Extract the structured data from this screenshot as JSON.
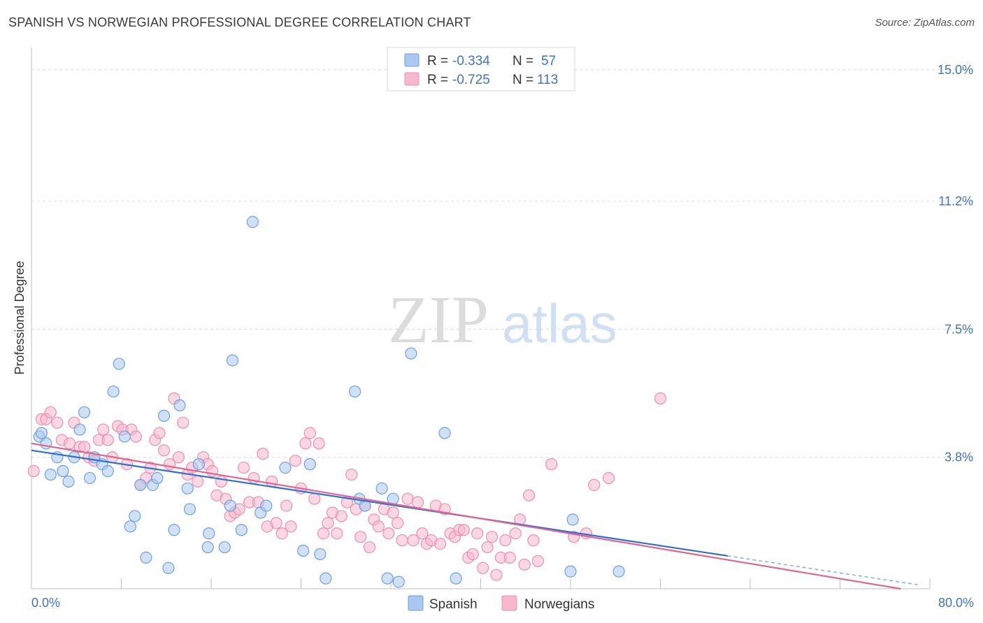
{
  "title": "SPANISH VS NORWEGIAN PROFESSIONAL DEGREE CORRELATION CHART",
  "source": "Source: ZipAtlas.com",
  "watermark": {
    "zip": "ZIP",
    "atlas": "atlas"
  },
  "colors": {
    "spanish_fill": "#a9c8ee",
    "spanish_stroke": "#6fa0dd",
    "spanish_line": "#2f6fd1",
    "norwegian_fill": "#f5b8cc",
    "norwegian_stroke": "#ec8fae",
    "norwegian_line": "#e0648f",
    "tick_blue": "#3d73c9",
    "grid": "#d8d8d8"
  },
  "legend": {
    "r_label": "R =",
    "n_label": "N =",
    "rows": [
      {
        "r": "-0.334",
        "n": "57"
      },
      {
        "r": "-0.725",
        "n": "113"
      }
    ]
  },
  "chart_data": {
    "type": "scatter",
    "title": "SPANISH VS NORWEGIAN PROFESSIONAL DEGREE CORRELATION CHART",
    "xlabel": "",
    "ylabel": "Professional Degree",
    "xlim": [
      0,
      80
    ],
    "ylim": [
      0,
      15.5
    ],
    "x_tick_labels": [
      "0.0%",
      "80.0%"
    ],
    "y_ticks": [
      3.8,
      7.5,
      11.2,
      15.0
    ],
    "y_tick_labels": [
      "3.8%",
      "7.5%",
      "11.2%",
      "15.0%"
    ],
    "grid": true,
    "legend_position": "top-center",
    "series": [
      {
        "name": "Spanish",
        "r": -0.334,
        "n": 57,
        "trend": {
          "x": [
            0,
            62
          ],
          "y": [
            4.0,
            0.95
          ]
        },
        "points": [
          [
            0.7,
            4.4
          ],
          [
            0.9,
            4.5
          ],
          [
            1.3,
            4.2
          ],
          [
            1.7,
            3.3
          ],
          [
            2.3,
            3.8
          ],
          [
            2.8,
            3.4
          ],
          [
            3.3,
            3.1
          ],
          [
            3.8,
            3.8
          ],
          [
            4.3,
            4.6
          ],
          [
            4.7,
            5.1
          ],
          [
            5.2,
            3.2
          ],
          [
            5.6,
            3.8
          ],
          [
            6.3,
            3.6
          ],
          [
            6.8,
            3.4
          ],
          [
            7.3,
            5.7
          ],
          [
            7.8,
            6.5
          ],
          [
            8.3,
            4.4
          ],
          [
            8.8,
            1.8
          ],
          [
            9.2,
            2.1
          ],
          [
            9.7,
            3.0
          ],
          [
            10.2,
            0.9
          ],
          [
            10.8,
            3.0
          ],
          [
            11.2,
            3.2
          ],
          [
            11.8,
            5.0
          ],
          [
            12.2,
            0.6
          ],
          [
            12.7,
            1.7
          ],
          [
            13.2,
            5.3
          ],
          [
            13.9,
            2.9
          ],
          [
            14.1,
            2.3
          ],
          [
            14.9,
            3.6
          ],
          [
            15.7,
            1.2
          ],
          [
            15.8,
            1.6
          ],
          [
            17.2,
            1.2
          ],
          [
            17.7,
            2.4
          ],
          [
            17.9,
            6.6
          ],
          [
            18.7,
            1.7
          ],
          [
            19.7,
            10.6
          ],
          [
            20.4,
            2.2
          ],
          [
            20.9,
            2.4
          ],
          [
            22.6,
            3.5
          ],
          [
            24.2,
            1.1
          ],
          [
            24.8,
            3.6
          ],
          [
            25.7,
            1.0
          ],
          [
            26.2,
            0.3
          ],
          [
            28.8,
            5.7
          ],
          [
            29.2,
            2.6
          ],
          [
            29.7,
            2.4
          ],
          [
            31.2,
            2.9
          ],
          [
            31.7,
            0.3
          ],
          [
            32.2,
            2.6
          ],
          [
            32.7,
            0.2
          ],
          [
            33.8,
            6.8
          ],
          [
            36.8,
            4.5
          ],
          [
            37.8,
            0.3
          ],
          [
            48.2,
            2.0
          ],
          [
            48.0,
            0.5
          ],
          [
            52.3,
            0.5
          ]
        ]
      },
      {
        "name": "Norwegians",
        "r": -0.725,
        "n": 113,
        "trend": {
          "x": [
            0,
            77.4
          ],
          "y": [
            4.2,
            0.0
          ]
        },
        "points": [
          [
            0.2,
            3.4
          ],
          [
            0.9,
            4.9
          ],
          [
            1.3,
            4.9
          ],
          [
            1.7,
            5.1
          ],
          [
            2.3,
            4.8
          ],
          [
            2.7,
            4.3
          ],
          [
            3.4,
            4.2
          ],
          [
            3.8,
            4.8
          ],
          [
            4.3,
            4.1
          ],
          [
            4.7,
            4.1
          ],
          [
            5.1,
            3.8
          ],
          [
            5.6,
            3.7
          ],
          [
            6.0,
            4.3
          ],
          [
            6.4,
            4.6
          ],
          [
            6.8,
            4.3
          ],
          [
            7.2,
            3.8
          ],
          [
            7.7,
            4.7
          ],
          [
            8.1,
            4.6
          ],
          [
            8.5,
            3.6
          ],
          [
            8.9,
            4.6
          ],
          [
            9.3,
            4.4
          ],
          [
            9.7,
            3.0
          ],
          [
            10.2,
            3.2
          ],
          [
            10.6,
            3.5
          ],
          [
            11.0,
            4.3
          ],
          [
            11.4,
            4.5
          ],
          [
            11.8,
            4.0
          ],
          [
            12.3,
            3.6
          ],
          [
            12.7,
            5.5
          ],
          [
            13.1,
            3.8
          ],
          [
            13.5,
            4.8
          ],
          [
            13.9,
            3.3
          ],
          [
            14.3,
            3.5
          ],
          [
            14.8,
            3.1
          ],
          [
            15.3,
            3.8
          ],
          [
            15.7,
            3.6
          ],
          [
            16.1,
            3.4
          ],
          [
            16.5,
            2.7
          ],
          [
            16.9,
            3.1
          ],
          [
            17.3,
            2.6
          ],
          [
            17.7,
            2.1
          ],
          [
            18.1,
            2.2
          ],
          [
            18.5,
            2.3
          ],
          [
            18.9,
            3.5
          ],
          [
            19.4,
            2.5
          ],
          [
            19.8,
            3.2
          ],
          [
            20.2,
            2.5
          ],
          [
            20.6,
            3.9
          ],
          [
            21.0,
            1.8
          ],
          [
            21.4,
            3.1
          ],
          [
            21.8,
            1.9
          ],
          [
            22.3,
            1.6
          ],
          [
            22.7,
            2.4
          ],
          [
            23.1,
            1.8
          ],
          [
            23.5,
            3.7
          ],
          [
            24.0,
            2.9
          ],
          [
            24.4,
            4.2
          ],
          [
            24.8,
            4.5
          ],
          [
            25.2,
            2.6
          ],
          [
            25.6,
            4.2
          ],
          [
            26.0,
            1.6
          ],
          [
            26.4,
            1.9
          ],
          [
            26.8,
            2.2
          ],
          [
            27.2,
            1.6
          ],
          [
            27.6,
            2.1
          ],
          [
            28.1,
            2.5
          ],
          [
            28.5,
            3.3
          ],
          [
            28.9,
            2.3
          ],
          [
            29.3,
            1.5
          ],
          [
            29.7,
            2.4
          ],
          [
            30.1,
            1.2
          ],
          [
            30.5,
            2.0
          ],
          [
            30.9,
            1.8
          ],
          [
            31.4,
            2.3
          ],
          [
            31.8,
            1.6
          ],
          [
            32.2,
            2.2
          ],
          [
            32.6,
            1.9
          ],
          [
            33.0,
            1.4
          ],
          [
            33.5,
            2.6
          ],
          [
            34.0,
            1.4
          ],
          [
            34.4,
            2.5
          ],
          [
            34.8,
            1.6
          ],
          [
            35.2,
            1.3
          ],
          [
            35.6,
            1.4
          ],
          [
            36.0,
            2.4
          ],
          [
            36.4,
            1.3
          ],
          [
            36.8,
            2.3
          ],
          [
            37.3,
            1.6
          ],
          [
            37.7,
            1.5
          ],
          [
            38.1,
            1.7
          ],
          [
            38.5,
            1.7
          ],
          [
            38.9,
            0.9
          ],
          [
            39.3,
            1.0
          ],
          [
            39.7,
            1.6
          ],
          [
            40.2,
            0.6
          ],
          [
            40.6,
            1.2
          ],
          [
            41.0,
            1.5
          ],
          [
            41.4,
            0.4
          ],
          [
            41.8,
            0.9
          ],
          [
            42.2,
            1.4
          ],
          [
            42.6,
            0.9
          ],
          [
            43.1,
            1.6
          ],
          [
            43.5,
            2.0
          ],
          [
            43.9,
            0.7
          ],
          [
            44.3,
            2.7
          ],
          [
            44.7,
            1.4
          ],
          [
            45.1,
            0.8
          ],
          [
            46.3,
            3.6
          ],
          [
            48.3,
            1.5
          ],
          [
            49.4,
            1.6
          ],
          [
            50.1,
            3.0
          ],
          [
            51.4,
            3.2
          ],
          [
            56.0,
            5.5
          ]
        ]
      }
    ]
  },
  "bottom_legend": [
    {
      "label": "Spanish"
    },
    {
      "label": "Norwegians"
    }
  ]
}
